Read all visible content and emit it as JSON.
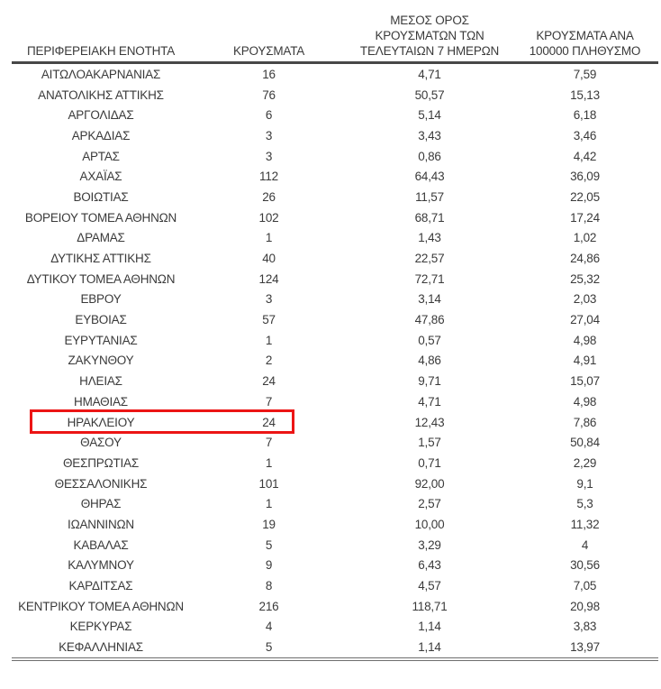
{
  "table": {
    "headers": [
      {
        "lines": [
          "ΠΕΡΙΦΕΡΕΙΑΚΗ ΕΝΟΤΗΤΑ"
        ]
      },
      {
        "lines": [
          "ΚΡΟΥΣΜΑΤΑ"
        ]
      },
      {
        "lines": [
          "ΜΕΣΟΣ ΟΡΟΣ",
          "ΚΡΟΥΣΜΑΤΩΝ ΤΩΝ",
          "ΤΕΛΕΥΤΑΙΩΝ 7 ΗΜΕΡΩΝ"
        ]
      },
      {
        "lines": [
          "ΚΡΟΥΣΜΑΤΑ ΑΝΑ",
          "100000 ΠΛΗΘΥΣΜΟ"
        ]
      }
    ],
    "highlight_color": "#ec1515",
    "rows": [
      {
        "region": "ΑΙΤΩΛΟΑΚΑΡΝΑΝΙΑΣ",
        "cases": "16",
        "avg_last_7_days": "4,71",
        "per_100k": "7,59",
        "highlighted": false
      },
      {
        "region": "ΑΝΑΤΟΛΙΚΗΣ ΑΤΤΙΚΗΣ",
        "cases": "76",
        "avg_last_7_days": "50,57",
        "per_100k": "15,13",
        "highlighted": false
      },
      {
        "region": "ΑΡΓΟΛΙΔΑΣ",
        "cases": "6",
        "avg_last_7_days": "5,14",
        "per_100k": "6,18",
        "highlighted": false
      },
      {
        "region": "ΑΡΚΑΔΙΑΣ",
        "cases": "3",
        "avg_last_7_days": "3,43",
        "per_100k": "3,46",
        "highlighted": false
      },
      {
        "region": "ΑΡΤΑΣ",
        "cases": "3",
        "avg_last_7_days": "0,86",
        "per_100k": "4,42",
        "highlighted": false
      },
      {
        "region": "ΑΧΑΪΑΣ",
        "cases": "112",
        "avg_last_7_days": "64,43",
        "per_100k": "36,09",
        "highlighted": false
      },
      {
        "region": "ΒΟΙΩΤΙΑΣ",
        "cases": "26",
        "avg_last_7_days": "11,57",
        "per_100k": "22,05",
        "highlighted": false
      },
      {
        "region": "ΒΟΡΕΙΟΥ ΤΟΜΕΑ ΑΘΗΝΩΝ",
        "cases": "102",
        "avg_last_7_days": "68,71",
        "per_100k": "17,24",
        "highlighted": false
      },
      {
        "region": "ΔΡΑΜΑΣ",
        "cases": "1",
        "avg_last_7_days": "1,43",
        "per_100k": "1,02",
        "highlighted": false
      },
      {
        "region": "ΔΥΤΙΚΗΣ ΑΤΤΙΚΗΣ",
        "cases": "40",
        "avg_last_7_days": "22,57",
        "per_100k": "24,86",
        "highlighted": false
      },
      {
        "region": "ΔΥΤΙΚΟΥ ΤΟΜΕΑ ΑΘΗΝΩΝ",
        "cases": "124",
        "avg_last_7_days": "72,71",
        "per_100k": "25,32",
        "highlighted": false
      },
      {
        "region": "ΕΒΡΟΥ",
        "cases": "3",
        "avg_last_7_days": "3,14",
        "per_100k": "2,03",
        "highlighted": false
      },
      {
        "region": "ΕΥΒΟΙΑΣ",
        "cases": "57",
        "avg_last_7_days": "47,86",
        "per_100k": "27,04",
        "highlighted": false
      },
      {
        "region": "ΕΥΡΥΤΑΝΙΑΣ",
        "cases": "1",
        "avg_last_7_days": "0,57",
        "per_100k": "4,98",
        "highlighted": false
      },
      {
        "region": "ΖΑΚΥΝΘΟΥ",
        "cases": "2",
        "avg_last_7_days": "4,86",
        "per_100k": "4,91",
        "highlighted": false
      },
      {
        "region": "ΗΛΕΙΑΣ",
        "cases": "24",
        "avg_last_7_days": "9,71",
        "per_100k": "15,07",
        "highlighted": false
      },
      {
        "region": "ΗΜΑΘΙΑΣ",
        "cases": "7",
        "avg_last_7_days": "4,71",
        "per_100k": "4,98",
        "highlighted": false
      },
      {
        "region": "ΗΡΑΚΛΕΙΟΥ",
        "cases": "24",
        "avg_last_7_days": "12,43",
        "per_100k": "7,86",
        "highlighted": true
      },
      {
        "region": "ΘΑΣΟΥ",
        "cases": "7",
        "avg_last_7_days": "1,57",
        "per_100k": "50,84",
        "highlighted": false
      },
      {
        "region": "ΘΕΣΠΡΩΤΙΑΣ",
        "cases": "1",
        "avg_last_7_days": "0,71",
        "per_100k": "2,29",
        "highlighted": false
      },
      {
        "region": "ΘΕΣΣΑΛΟΝΙΚΗΣ",
        "cases": "101",
        "avg_last_7_days": "92,00",
        "per_100k": "9,1",
        "highlighted": false
      },
      {
        "region": "ΘΗΡΑΣ",
        "cases": "1",
        "avg_last_7_days": "2,57",
        "per_100k": "5,3",
        "highlighted": false
      },
      {
        "region": "ΙΩΑΝΝΙΝΩΝ",
        "cases": "19",
        "avg_last_7_days": "10,00",
        "per_100k": "11,32",
        "highlighted": false
      },
      {
        "region": "ΚΑΒΑΛΑΣ",
        "cases": "5",
        "avg_last_7_days": "3,29",
        "per_100k": "4",
        "highlighted": false
      },
      {
        "region": "ΚΑΛΥΜΝΟΥ",
        "cases": "9",
        "avg_last_7_days": "6,43",
        "per_100k": "30,56",
        "highlighted": false
      },
      {
        "region": "ΚΑΡΔΙΤΣΑΣ",
        "cases": "8",
        "avg_last_7_days": "4,57",
        "per_100k": "7,05",
        "highlighted": false
      },
      {
        "region": "ΚΕΝΤΡΙΚΟΥ ΤΟΜΕΑ ΑΘΗΝΩΝ",
        "cases": "216",
        "avg_last_7_days": "118,71",
        "per_100k": "20,98",
        "highlighted": false
      },
      {
        "region": "ΚΕΡΚΥΡΑΣ",
        "cases": "4",
        "avg_last_7_days": "1,14",
        "per_100k": "3,83",
        "highlighted": false
      },
      {
        "region": "ΚΕΦΑΛΛΗΝΙΑΣ",
        "cases": "5",
        "avg_last_7_days": "1,14",
        "per_100k": "13,97",
        "highlighted": false
      }
    ]
  }
}
